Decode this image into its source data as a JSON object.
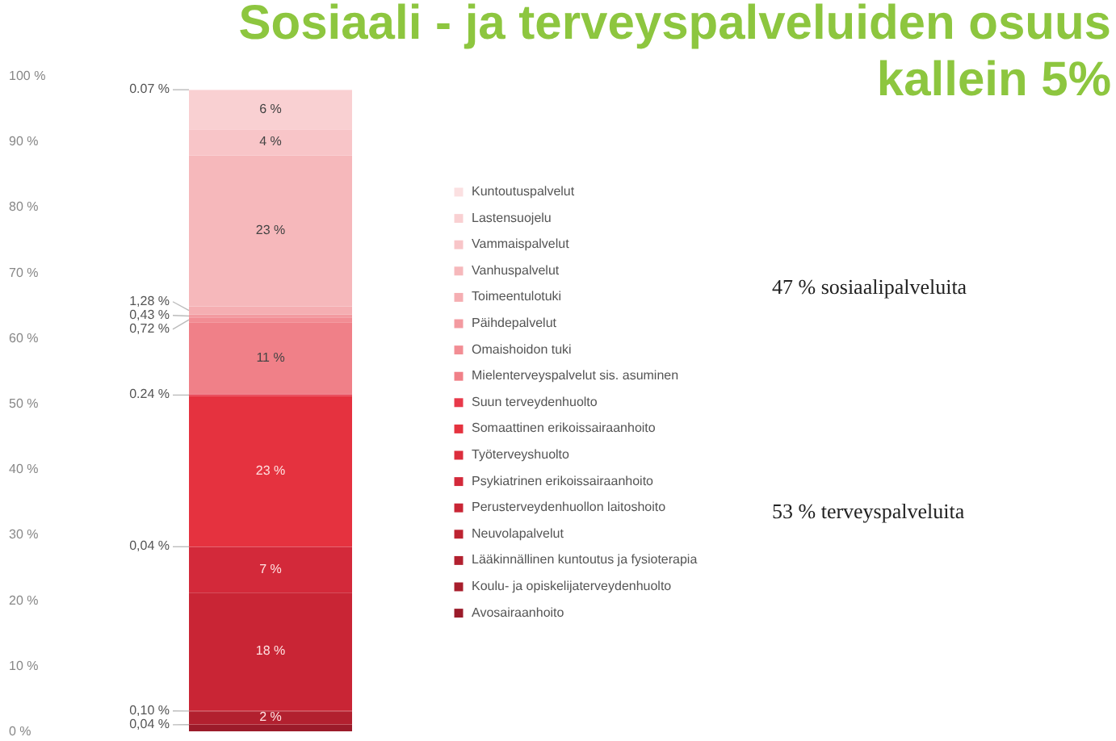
{
  "chart_data": {
    "type": "bar",
    "title": "Sosiaali - ja terveyspalveluiden osuus kallein 5%",
    "categories": [
      null
    ],
    "stacked": true,
    "ylim": [
      0,
      100
    ],
    "yticks": [
      {
        "value": 0,
        "label": "0 %"
      },
      {
        "value": 10,
        "label": "10 %"
      },
      {
        "value": 20,
        "label": "20 %"
      },
      {
        "value": 30,
        "label": "30 %"
      },
      {
        "value": 40,
        "label": "40 %"
      },
      {
        "value": 50,
        "label": "50 %"
      },
      {
        "value": 60,
        "label": "60 %"
      },
      {
        "value": 70,
        "label": "70 %"
      },
      {
        "value": 80,
        "label": "80 %"
      },
      {
        "value": 90,
        "label": "90 %"
      },
      {
        "value": 100,
        "label": "100 %"
      }
    ],
    "legend": "right",
    "series": [
      {
        "name": "Avosairaanhoito",
        "color": "#9b1b2a",
        "values": [
          1
        ],
        "value_labels": [
          null
        ]
      },
      {
        "name": "Koulu- ja opiskelijaterveydenhuolto",
        "color": "#a81e2c",
        "values": [
          0.04
        ],
        "value_labels": [
          "0,04 %"
        ]
      },
      {
        "name": "Lääkinnällinen kuntoutus ja fysioterapia",
        "color": "#b2202f",
        "values": [
          2
        ],
        "value_labels": [
          "2 %"
        ]
      },
      {
        "name": "Neuvolapalvelut",
        "color": "#bd2331",
        "values": [
          0.1
        ],
        "value_labels": [
          "0,10 %"
        ]
      },
      {
        "name": "Perusterveydenhuollon laitoshoito",
        "color": "#c92535",
        "values": [
          18
        ],
        "value_labels": [
          "18 %"
        ]
      },
      {
        "name": "Psykiatrinen erikoissairaanhoito",
        "color": "#d3293a",
        "values": [
          7
        ],
        "value_labels": [
          "7 %"
        ]
      },
      {
        "name": "Työterveyshuolto",
        "color": "#dc2d3c",
        "values": [
          0.04
        ],
        "value_labels": [
          "0,04 %"
        ]
      },
      {
        "name": "Somaattinen erikoissairaanhoito",
        "color": "#e5323f",
        "values": [
          23
        ],
        "value_labels": [
          "23 %"
        ]
      },
      {
        "name": "Suun terveydenhuolto",
        "color": "#e8394a",
        "values": [
          0.24
        ],
        "value_labels": [
          "0.24 %"
        ]
      },
      {
        "name": "Mielenterveyspalvelut sis. asuminen",
        "color": "#f08088",
        "values": [
          11
        ],
        "value_labels": [
          "11 %"
        ]
      },
      {
        "name": "Omaishoidon tuki",
        "color": "#f28d94",
        "values": [
          0.72
        ],
        "value_labels": [
          "0,72 %"
        ]
      },
      {
        "name": "Päihdepalvelut",
        "color": "#f39aa0",
        "values": [
          0.43
        ],
        "value_labels": [
          "0,43 %"
        ]
      },
      {
        "name": "Toimeentulotuki",
        "color": "#f5aeb2",
        "values": [
          1.28
        ],
        "value_labels": [
          "1,28 %"
        ]
      },
      {
        "name": "Vanhuspalvelut",
        "color": "#f6b8bb",
        "values": [
          23
        ],
        "value_labels": [
          "23 %"
        ]
      },
      {
        "name": "Vammaispalvelut",
        "color": "#f8c5c8",
        "values": [
          4
        ],
        "value_labels": [
          "4 %"
        ]
      },
      {
        "name": "Lastensuojelu",
        "color": "#f9d0d2",
        "values": [
          6
        ],
        "value_labels": [
          "6 %"
        ]
      },
      {
        "name": "Kuntoutuspalvelut",
        "color": "#fbe0e1",
        "values": [
          0.07
        ],
        "value_labels": [
          "0.07 %"
        ]
      }
    ],
    "annotations": [
      "47 % sosiaalipalveluita",
      "53 % terveyspalveluita"
    ]
  }
}
